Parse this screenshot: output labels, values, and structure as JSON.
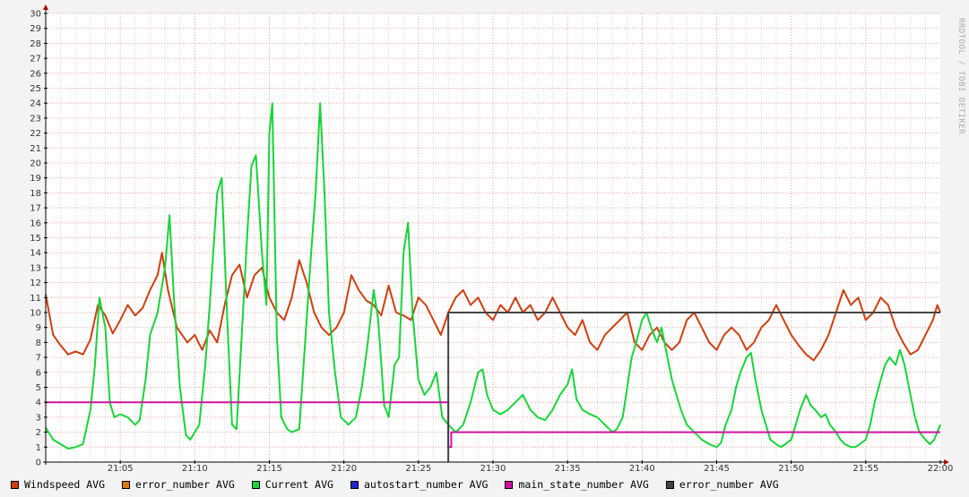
{
  "chart_data": {
    "type": "line",
    "watermark": "RRDTOOL / TOBI OETIKER",
    "ylim": [
      0,
      30
    ],
    "y_ticks": [
      0,
      1,
      2,
      3,
      4,
      5,
      6,
      7,
      8,
      9,
      10,
      11,
      12,
      13,
      14,
      15,
      16,
      17,
      18,
      19,
      20,
      21,
      22,
      23,
      24,
      25,
      26,
      27,
      28,
      29,
      30
    ],
    "x_range_minutes": [
      0,
      60
    ],
    "x_ticks": [
      {
        "m": 5,
        "label": "21:05"
      },
      {
        "m": 10,
        "label": "21:10"
      },
      {
        "m": 15,
        "label": "21:15"
      },
      {
        "m": 20,
        "label": "21:20"
      },
      {
        "m": 25,
        "label": "21:25"
      },
      {
        "m": 30,
        "label": "21:30"
      },
      {
        "m": 35,
        "label": "21:35"
      },
      {
        "m": 40,
        "label": "21:40"
      },
      {
        "m": 45,
        "label": "21:45"
      },
      {
        "m": 50,
        "label": "21:50"
      },
      {
        "m": 55,
        "label": "21:55"
      },
      {
        "m": 60,
        "label": "22:00"
      }
    ],
    "series": [
      {
        "name": "Windspeed AVG",
        "color": "#cc3f0f",
        "points": [
          [
            0,
            11.2
          ],
          [
            0.5,
            8.5
          ],
          [
            1,
            7.8
          ],
          [
            1.5,
            7.2
          ],
          [
            2,
            7.4
          ],
          [
            2.5,
            7.2
          ],
          [
            3,
            8.2
          ],
          [
            3.5,
            10.5
          ],
          [
            4,
            9.8
          ],
          [
            4.5,
            8.6
          ],
          [
            5,
            9.5
          ],
          [
            5.5,
            10.5
          ],
          [
            6,
            9.8
          ],
          [
            6.5,
            10.3
          ],
          [
            7,
            11.5
          ],
          [
            7.5,
            12.5
          ],
          [
            7.8,
            14
          ],
          [
            8.2,
            11.5
          ],
          [
            8.8,
            9.0
          ],
          [
            9.5,
            8.0
          ],
          [
            10,
            8.5
          ],
          [
            10.5,
            7.5
          ],
          [
            11,
            8.8
          ],
          [
            11.5,
            8.0
          ],
          [
            12,
            10.5
          ],
          [
            12.5,
            12.5
          ],
          [
            13,
            13.2
          ],
          [
            13.5,
            11.0
          ],
          [
            14,
            12.5
          ],
          [
            14.5,
            13.0
          ],
          [
            15,
            11.0
          ],
          [
            15.5,
            10.0
          ],
          [
            16,
            9.5
          ],
          [
            16.5,
            11.0
          ],
          [
            17,
            13.5
          ],
          [
            17.5,
            12.0
          ],
          [
            18,
            10.0
          ],
          [
            18.5,
            9.0
          ],
          [
            19,
            8.5
          ],
          [
            19.5,
            9.0
          ],
          [
            20,
            10.0
          ],
          [
            20.5,
            12.5
          ],
          [
            21,
            11.5
          ],
          [
            21.5,
            10.8
          ],
          [
            22,
            10.5
          ],
          [
            22.5,
            9.8
          ],
          [
            23,
            11.8
          ],
          [
            23.5,
            10.0
          ],
          [
            24,
            9.8
          ],
          [
            24.5,
            9.5
          ],
          [
            25,
            11.0
          ],
          [
            25.5,
            10.5
          ],
          [
            26,
            9.5
          ],
          [
            26.5,
            8.5
          ],
          [
            27,
            10.0
          ],
          [
            27.5,
            11.0
          ],
          [
            28,
            11.5
          ],
          [
            28.5,
            10.5
          ],
          [
            29,
            11.0
          ],
          [
            29.5,
            10.0
          ],
          [
            30,
            9.5
          ],
          [
            30.5,
            10.5
          ],
          [
            31,
            10.0
          ],
          [
            31.5,
            11.0
          ],
          [
            32,
            10.0
          ],
          [
            32.5,
            10.5
          ],
          [
            33,
            9.5
          ],
          [
            33.5,
            10.0
          ],
          [
            34,
            11.0
          ],
          [
            34.5,
            10.0
          ],
          [
            35,
            9.0
          ],
          [
            35.5,
            8.5
          ],
          [
            36,
            9.5
          ],
          [
            36.5,
            8.0
          ],
          [
            37,
            7.5
          ],
          [
            37.5,
            8.5
          ],
          [
            38,
            9.0
          ],
          [
            38.5,
            9.5
          ],
          [
            39,
            10.0
          ],
          [
            39.5,
            8.0
          ],
          [
            40,
            7.5
          ],
          [
            40.5,
            8.5
          ],
          [
            41,
            9.0
          ],
          [
            41.5,
            8.0
          ],
          [
            42,
            7.5
          ],
          [
            42.5,
            8.0
          ],
          [
            43,
            9.5
          ],
          [
            43.5,
            10.0
          ],
          [
            44,
            9.0
          ],
          [
            44.5,
            8.0
          ],
          [
            45,
            7.5
          ],
          [
            45.5,
            8.5
          ],
          [
            46,
            9.0
          ],
          [
            46.5,
            8.5
          ],
          [
            47,
            7.5
          ],
          [
            47.5,
            8.0
          ],
          [
            48,
            9.0
          ],
          [
            48.5,
            9.5
          ],
          [
            49,
            10.5
          ],
          [
            49.5,
            9.5
          ],
          [
            50,
            8.5
          ],
          [
            50.5,
            7.8
          ],
          [
            51,
            7.2
          ],
          [
            51.5,
            6.8
          ],
          [
            52,
            7.5
          ],
          [
            52.5,
            8.5
          ],
          [
            53,
            10.0
          ],
          [
            53.5,
            11.5
          ],
          [
            54,
            10.5
          ],
          [
            54.5,
            11.0
          ],
          [
            55,
            9.5
          ],
          [
            55.5,
            10.0
          ],
          [
            56,
            11.0
          ],
          [
            56.5,
            10.5
          ],
          [
            57,
            9.0
          ],
          [
            57.5,
            8.0
          ],
          [
            58,
            7.2
          ],
          [
            58.5,
            7.5
          ],
          [
            59,
            8.5
          ],
          [
            59.5,
            9.5
          ],
          [
            59.8,
            10.5
          ],
          [
            60,
            10.0
          ]
        ]
      },
      {
        "name": "error_number AVG",
        "color": "#e07812",
        "points": []
      },
      {
        "name": "Current AVG",
        "color": "#17d43a",
        "points": [
          [
            0,
            2.3
          ],
          [
            0.5,
            1.5
          ],
          [
            1,
            1.2
          ],
          [
            1.5,
            0.9
          ],
          [
            2,
            1.0
          ],
          [
            2.5,
            1.2
          ],
          [
            3,
            3.5
          ],
          [
            3.3,
            6.5
          ],
          [
            3.6,
            11.0
          ],
          [
            4,
            9.0
          ],
          [
            4.3,
            4.0
          ],
          [
            4.6,
            3.0
          ],
          [
            5,
            3.2
          ],
          [
            5.5,
            3.0
          ],
          [
            6,
            2.5
          ],
          [
            6.3,
            2.8
          ],
          [
            6.7,
            5.5
          ],
          [
            7,
            8.5
          ],
          [
            7.5,
            10.0
          ],
          [
            8,
            13.0
          ],
          [
            8.3,
            16.5
          ],
          [
            8.6,
            11.0
          ],
          [
            9,
            5.0
          ],
          [
            9.4,
            1.8
          ],
          [
            9.7,
            1.5
          ],
          [
            10,
            2.0
          ],
          [
            10.3,
            2.5
          ],
          [
            10.7,
            6.5
          ],
          [
            11,
            10.5
          ],
          [
            11.5,
            18.0
          ],
          [
            11.8,
            19.0
          ],
          [
            12.2,
            9.0
          ],
          [
            12.5,
            2.5
          ],
          [
            12.8,
            2.2
          ],
          [
            13.2,
            9.5
          ],
          [
            13.5,
            15.0
          ],
          [
            13.8,
            19.8
          ],
          [
            14.1,
            20.5
          ],
          [
            14.5,
            14.0
          ],
          [
            14.8,
            10.5
          ],
          [
            15,
            22.0
          ],
          [
            15.2,
            24.0
          ],
          [
            15.5,
            8.5
          ],
          [
            15.8,
            3.0
          ],
          [
            16.2,
            2.2
          ],
          [
            16.5,
            2.0
          ],
          [
            17,
            2.2
          ],
          [
            17.4,
            8.0
          ],
          [
            17.8,
            14.0
          ],
          [
            18.1,
            18.0
          ],
          [
            18.4,
            24.0
          ],
          [
            18.7,
            18.0
          ],
          [
            19.0,
            10.0
          ],
          [
            19.4,
            6.0
          ],
          [
            19.8,
            3.0
          ],
          [
            20.3,
            2.5
          ],
          [
            20.8,
            3.0
          ],
          [
            21.2,
            5.0
          ],
          [
            21.6,
            8.0
          ],
          [
            22,
            11.5
          ],
          [
            22.3,
            9.5
          ],
          [
            22.7,
            3.8
          ],
          [
            23.0,
            3.0
          ],
          [
            23.4,
            6.5
          ],
          [
            23.7,
            7.0
          ],
          [
            24,
            14.0
          ],
          [
            24.3,
            16.0
          ],
          [
            24.6,
            10.0
          ],
          [
            25,
            5.5
          ],
          [
            25.4,
            4.5
          ],
          [
            25.8,
            5.0
          ],
          [
            26.2,
            6.0
          ],
          [
            26.6,
            3.0
          ],
          [
            27,
            2.5
          ],
          [
            27.5,
            2.0
          ],
          [
            28,
            2.5
          ],
          [
            28.5,
            4.0
          ],
          [
            29,
            6.0
          ],
          [
            29.3,
            6.2
          ],
          [
            29.6,
            4.5
          ],
          [
            30,
            3.5
          ],
          [
            30.5,
            3.2
          ],
          [
            31,
            3.5
          ],
          [
            31.5,
            4.0
          ],
          [
            32,
            4.5
          ],
          [
            32.5,
            3.5
          ],
          [
            33,
            3.0
          ],
          [
            33.5,
            2.8
          ],
          [
            34,
            3.5
          ],
          [
            34.5,
            4.5
          ],
          [
            35,
            5.2
          ],
          [
            35.3,
            6.2
          ],
          [
            35.6,
            4.2
          ],
          [
            36,
            3.5
          ],
          [
            36.5,
            3.2
          ],
          [
            37,
            3.0
          ],
          [
            37.5,
            2.5
          ],
          [
            38,
            2.0
          ],
          [
            38.3,
            2.2
          ],
          [
            38.7,
            3.0
          ],
          [
            39,
            5.0
          ],
          [
            39.3,
            7.0
          ],
          [
            39.6,
            8.0
          ],
          [
            40,
            9.5
          ],
          [
            40.3,
            10.0
          ],
          [
            40.6,
            9.0
          ],
          [
            41,
            8.0
          ],
          [
            41.3,
            9.0
          ],
          [
            41.6,
            7.5
          ],
          [
            42,
            5.5
          ],
          [
            42.3,
            4.5
          ],
          [
            42.6,
            3.5
          ],
          [
            43,
            2.5
          ],
          [
            43.5,
            2.0
          ],
          [
            44,
            1.5
          ],
          [
            44.5,
            1.2
          ],
          [
            45,
            1.0
          ],
          [
            45.3,
            1.3
          ],
          [
            45.6,
            2.5
          ],
          [
            46,
            3.5
          ],
          [
            46.3,
            5.0
          ],
          [
            46.6,
            6.0
          ],
          [
            47,
            7.0
          ],
          [
            47.3,
            7.3
          ],
          [
            47.6,
            5.5
          ],
          [
            48,
            3.5
          ],
          [
            48.3,
            2.5
          ],
          [
            48.6,
            1.5
          ],
          [
            49,
            1.2
          ],
          [
            49.3,
            1.0
          ],
          [
            49.6,
            1.2
          ],
          [
            50,
            1.5
          ],
          [
            50.3,
            2.5
          ],
          [
            50.6,
            3.5
          ],
          [
            51,
            4.5
          ],
          [
            51.3,
            3.8
          ],
          [
            51.6,
            3.5
          ],
          [
            52,
            3.0
          ],
          [
            52.3,
            3.2
          ],
          [
            52.6,
            2.5
          ],
          [
            53,
            2.0
          ],
          [
            53.3,
            1.5
          ],
          [
            53.6,
            1.2
          ],
          [
            54,
            1.0
          ],
          [
            54.3,
            1.0
          ],
          [
            54.6,
            1.2
          ],
          [
            55,
            1.5
          ],
          [
            55.3,
            2.5
          ],
          [
            55.6,
            4.0
          ],
          [
            56,
            5.5
          ],
          [
            56.3,
            6.5
          ],
          [
            56.6,
            7.0
          ],
          [
            57,
            6.5
          ],
          [
            57.3,
            7.5
          ],
          [
            57.6,
            6.5
          ],
          [
            58,
            4.5
          ],
          [
            58.3,
            3.0
          ],
          [
            58.6,
            2.0
          ],
          [
            59,
            1.5
          ],
          [
            59.3,
            1.2
          ],
          [
            59.6,
            1.5
          ],
          [
            60,
            2.5
          ]
        ]
      },
      {
        "name": "autostart_number AVG",
        "color": "#2222cc",
        "points": []
      },
      {
        "name": "main_state_number AVG",
        "color": "#d0129e",
        "points": [
          [
            0,
            4
          ],
          [
            27,
            4
          ],
          [
            27,
            1
          ],
          [
            27.2,
            1
          ],
          [
            27.2,
            2
          ],
          [
            60,
            2
          ]
        ]
      },
      {
        "name": "error_number AVG",
        "color": "#444444",
        "points": [
          [
            27,
            0
          ],
          [
            27,
            10
          ],
          [
            60,
            10
          ]
        ]
      }
    ]
  }
}
